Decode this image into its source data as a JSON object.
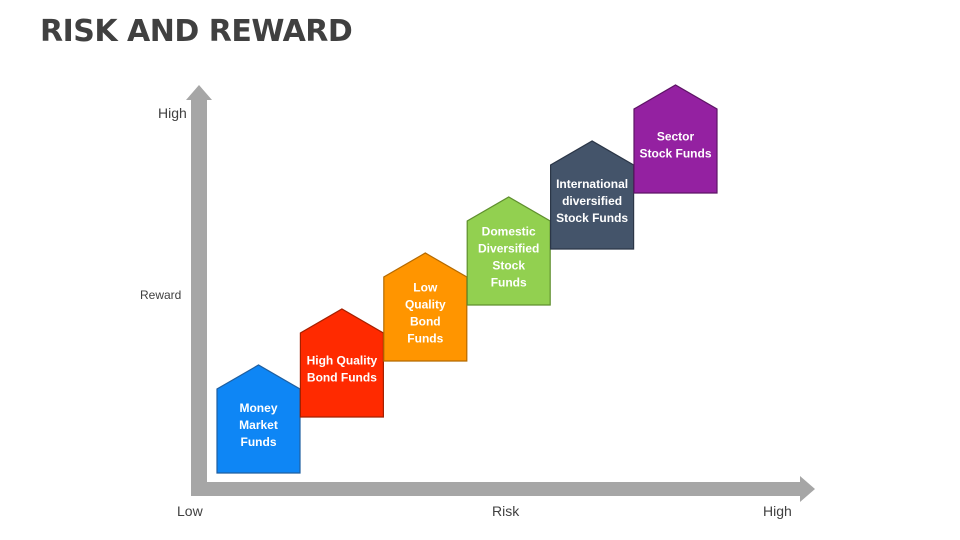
{
  "title": "RISK AND REWARD",
  "axes": {
    "y_axis_high": "High",
    "y_axis_label": "Reward",
    "x_axis_low": "Low",
    "x_axis_label": "Risk",
    "x_axis_high": "High",
    "axis_color": "#a6a6a6"
  },
  "steps": [
    {
      "lines": [
        "Money",
        "Market",
        "Funds"
      ],
      "color": "#0e86f5",
      "border": "#1f5fa0"
    },
    {
      "lines": [
        "High Quality",
        "Bond Funds"
      ],
      "color": "#ff2a00",
      "border": "#a52000"
    },
    {
      "lines": [
        "Low",
        "Quality",
        "Bond",
        "Funds"
      ],
      "color": "#ff9500",
      "border": "#b56a00"
    },
    {
      "lines": [
        "Domestic",
        "Diversified",
        "Stock",
        "Funds"
      ],
      "color": "#92d050",
      "border": "#5f8f2e"
    },
    {
      "lines": [
        "International",
        "diversified",
        "Stock Funds"
      ],
      "color": "#44546a",
      "border": "#2b3647"
    },
    {
      "lines": [
        "Sector",
        "Stock Funds"
      ],
      "color": "#9421a1",
      "border": "#5e1466"
    }
  ]
}
